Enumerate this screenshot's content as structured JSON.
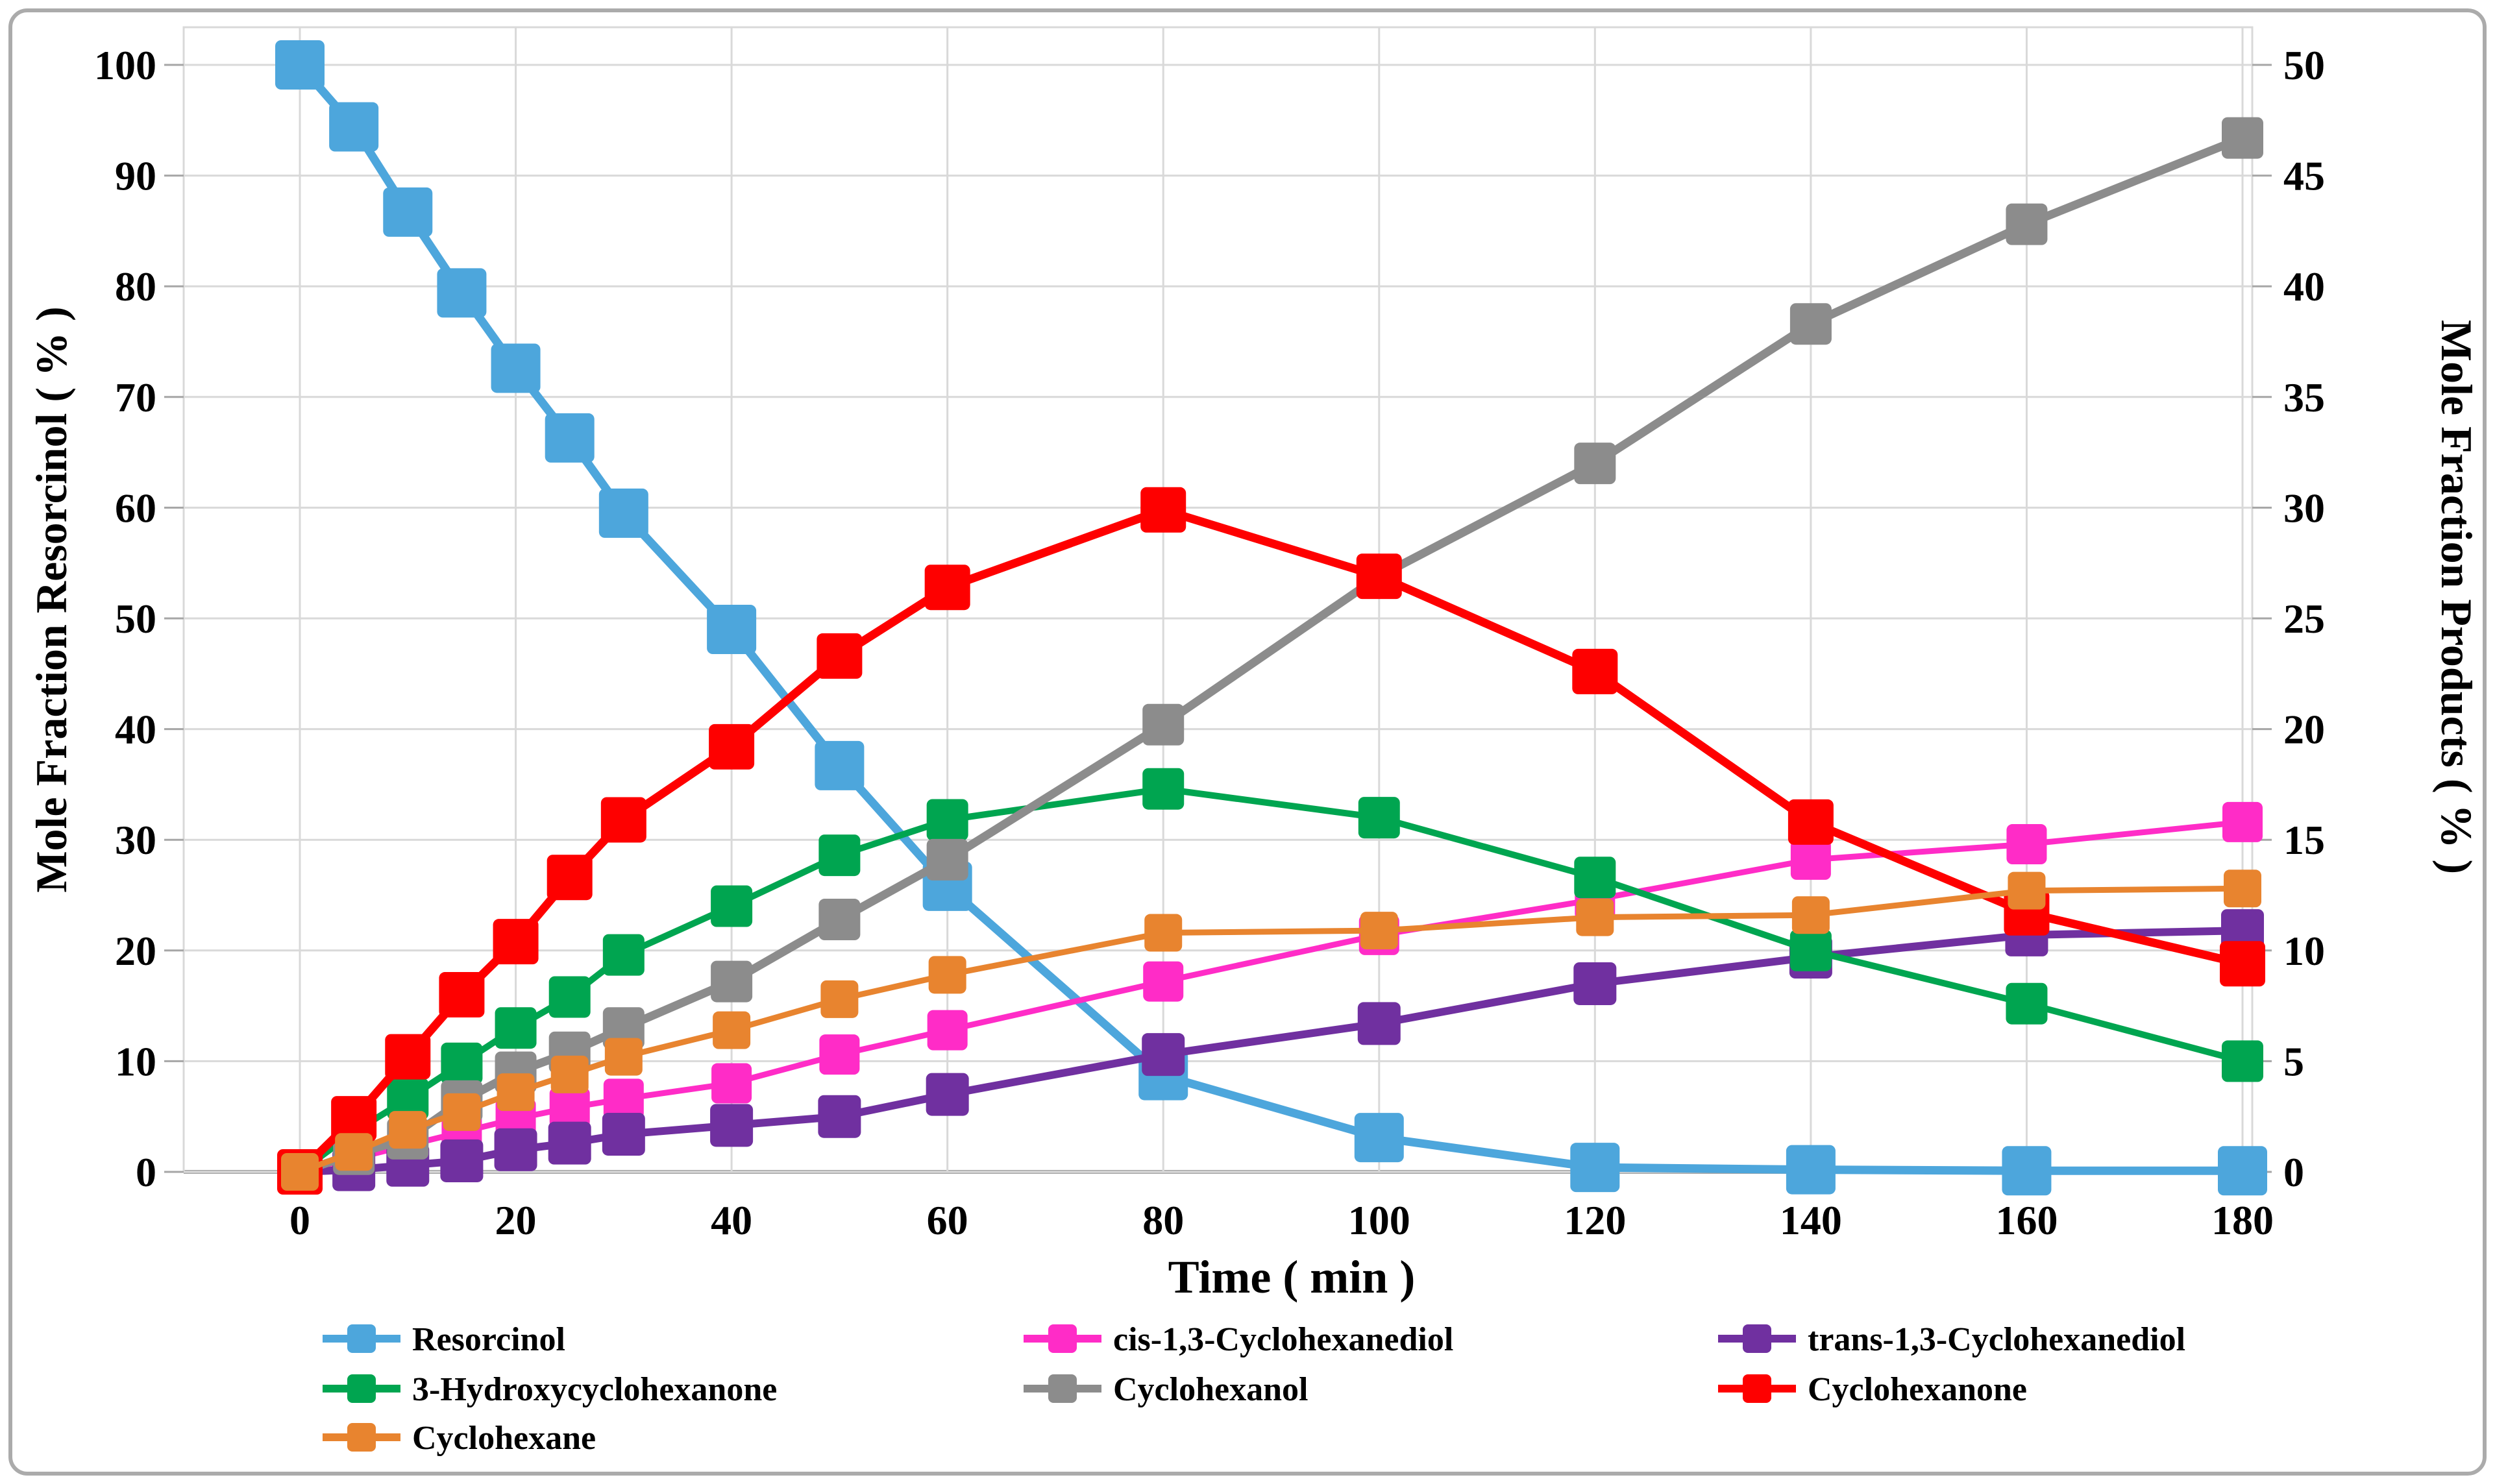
{
  "chart_data": {
    "type": "line",
    "title": "",
    "xlabel": "Time ( min )",
    "ylabel_left": "Mole Fraction Resorcinol ( % )",
    "ylabel_right": "Mole Fraction Products ( % )",
    "grid": true,
    "legend_position": "bottom",
    "x": [
      0,
      5,
      10,
      15,
      20,
      25,
      30,
      40,
      50,
      60,
      80,
      100,
      120,
      140,
      160,
      180
    ],
    "x_ticks": [
      0,
      20,
      40,
      60,
      80,
      100,
      120,
      140,
      160,
      180
    ],
    "left_axis": {
      "label": "Mole Fraction Resorcinol ( % )",
      "min": 0,
      "max": 100,
      "step": 10
    },
    "right_axis": {
      "label": "Mole Fraction Products ( % )",
      "min": 0,
      "max": 50,
      "step": 5
    },
    "colors": {
      "grid": "#D9D9D9",
      "axis_line": "#A6A6A6",
      "plot_border": "#D9D9D9",
      "figure_border": "#ABABAB"
    },
    "series": [
      {
        "name": "Resorcinol",
        "axis": "left",
        "color": "#4DA6DC",
        "values": [
          100,
          94.4,
          86.7,
          79.4,
          72.6,
          66.3,
          59.5,
          49.0,
          36.7,
          25.8,
          8.7,
          3.1,
          0.4,
          0.2,
          0.1,
          0.1
        ]
      },
      {
        "name": "cis-1,3-Cyclohexanediol",
        "axis": "right",
        "color": "#FF2CC7",
        "values": [
          0,
          0.6,
          1.2,
          1.8,
          2.4,
          2.9,
          3.3,
          4.0,
          5.3,
          6.4,
          8.6,
          10.7,
          12.3,
          14.1,
          14.8,
          15.8
        ]
      },
      {
        "name": "trans-1,3-Cyclohexanediol",
        "axis": "right",
        "color": "#7030A0",
        "values": [
          0,
          0.1,
          0.3,
          0.5,
          1.0,
          1.3,
          1.7,
          2.1,
          2.5,
          3.5,
          5.3,
          6.7,
          8.5,
          9.7,
          10.7,
          10.9
        ]
      },
      {
        "name": "3-Hydroxycyclohexanone",
        "axis": "right",
        "color": "#00A550",
        "values": [
          0,
          1.8,
          3.3,
          4.9,
          6.5,
          7.9,
          9.8,
          12.0,
          14.3,
          15.9,
          17.3,
          16.0,
          13.3,
          10.0,
          7.6,
          5.0
        ]
      },
      {
        "name": "Cyclohexanol",
        "axis": "right",
        "color": "#8C8C8C",
        "values": [
          0,
          0.8,
          1.5,
          3.2,
          4.5,
          5.4,
          6.5,
          8.6,
          11.4,
          14.1,
          20.2,
          26.9,
          32.0,
          38.3,
          42.8,
          46.7
        ]
      },
      {
        "name": "Cyclohexanone",
        "axis": "right",
        "color": "#FE0000",
        "values": [
          0,
          2.4,
          5.2,
          8.0,
          10.4,
          13.3,
          15.9,
          19.2,
          23.3,
          26.4,
          29.9,
          26.9,
          22.6,
          15.8,
          11.7,
          9.4
        ]
      },
      {
        "name": "Cyclohexane",
        "axis": "right",
        "color": "#E8842F",
        "values": [
          0,
          0.9,
          1.9,
          2.7,
          3.6,
          4.4,
          5.2,
          6.4,
          7.8,
          8.9,
          10.8,
          10.9,
          11.5,
          11.6,
          12.7,
          12.8
        ]
      }
    ]
  }
}
